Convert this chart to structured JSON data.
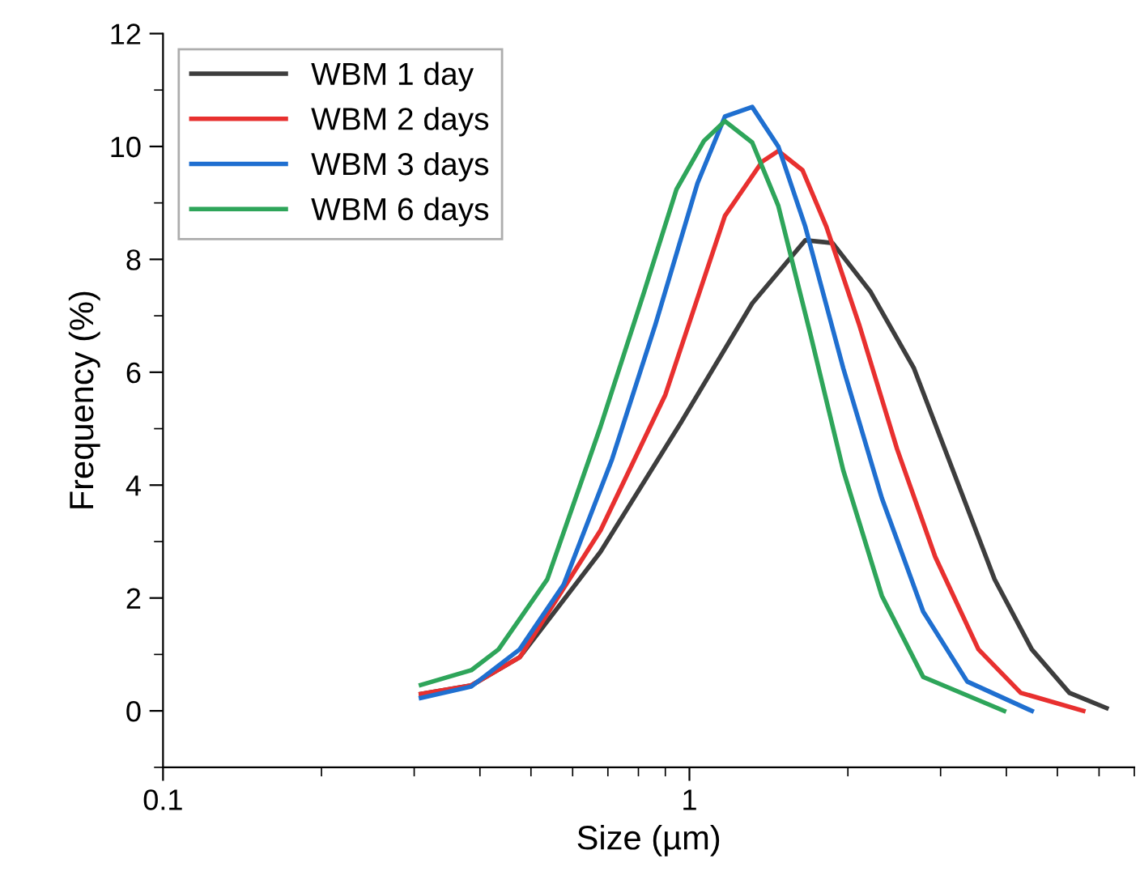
{
  "chart_data": {
    "type": "line",
    "xlabel": "Size (µm)",
    "ylabel": "Frequency (%)",
    "log": "x",
    "xlim": [
      0.1,
      7
    ],
    "xticks": [
      0.1,
      1
    ],
    "ylim": [
      -1,
      12
    ],
    "yticks": [
      0,
      2,
      4,
      6,
      8,
      10,
      12
    ],
    "grid": false,
    "legend": "top left",
    "marker": "none",
    "line_style": "solid",
    "series": [
      {
        "name": "WBM 1 day",
        "color": "#3d3d3d",
        "x": [
          0.309,
          0.385,
          0.476,
          0.678,
          0.965,
          1.316,
          1.66,
          1.87,
          2.21,
          2.67,
          3.14,
          3.8,
          4.47,
          5.27,
          6.2
        ],
        "values": [
          0.3,
          0.45,
          0.95,
          2.82,
          5.12,
          7.22,
          8.34,
          8.29,
          7.42,
          6.07,
          4.35,
          2.33,
          1.09,
          0.32,
          0.05
        ]
      },
      {
        "name": "WBM 2 days",
        "color": "#e8302f",
        "x": [
          0.309,
          0.385,
          0.476,
          0.678,
          0.9,
          1.168,
          1.374,
          1.475,
          1.64,
          1.82,
          2.1,
          2.48,
          2.93,
          3.54,
          4.26,
          5.6
        ],
        "values": [
          0.3,
          0.45,
          0.95,
          3.2,
          5.6,
          8.77,
          9.73,
          9.92,
          9.58,
          8.58,
          6.85,
          4.64,
          2.73,
          1.09,
          0.32,
          0.0
        ]
      },
      {
        "name": "WBM 3 days",
        "color": "#1f6fd0",
        "x": [
          0.309,
          0.385,
          0.476,
          0.577,
          0.713,
          0.862,
          1.036,
          1.168,
          1.316,
          1.475,
          1.66,
          1.96,
          2.32,
          2.78,
          3.37,
          4.47
        ],
        "values": [
          0.23,
          0.43,
          1.09,
          2.24,
          4.46,
          6.85,
          9.35,
          10.53,
          10.7,
          10.0,
          8.58,
          6.07,
          3.77,
          1.76,
          0.52,
          0.0
        ]
      },
      {
        "name": "WBM 6 days",
        "color": "#2ea55a",
        "x": [
          0.309,
          0.385,
          0.434,
          0.537,
          0.678,
          0.82,
          0.945,
          1.066,
          1.168,
          1.316,
          1.475,
          1.7,
          1.96,
          2.32,
          2.78,
          3.96
        ],
        "values": [
          0.46,
          0.72,
          1.09,
          2.33,
          5.04,
          7.42,
          9.24,
          10.1,
          10.45,
          10.07,
          8.95,
          6.65,
          4.26,
          2.04,
          0.6,
          0.0
        ]
      }
    ]
  }
}
